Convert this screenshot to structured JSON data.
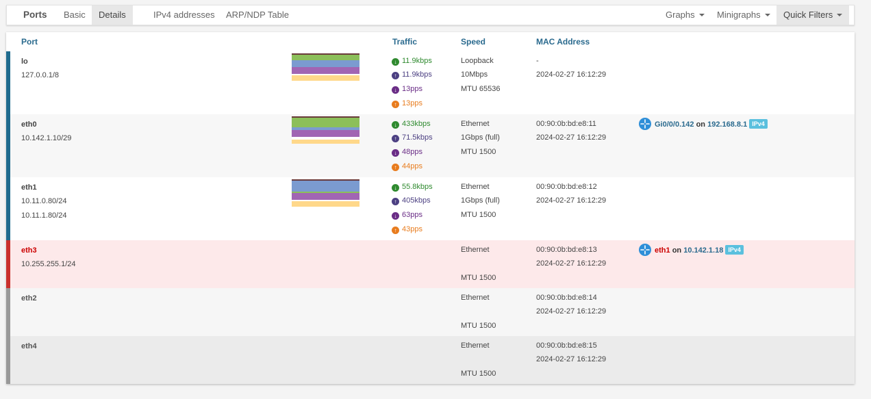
{
  "nav": {
    "title": "Ports",
    "basic": "Basic",
    "details": "Details",
    "ipv4": "IPv4 addresses",
    "arp": "ARP/NDP Table",
    "graphs": "Graphs",
    "minigraphs": "Minigraphs",
    "quick_filters": "Quick Filters"
  },
  "table": {
    "headers": {
      "port": "Port",
      "traffic": "Traffic",
      "speed": "Speed",
      "mac": "MAC Address"
    },
    "rows": [
      {
        "name": "lo",
        "status_color": "#2a6a8e",
        "addresses": [
          "127.0.0.1/8"
        ],
        "traffic": {
          "in_bps": "11.9kbps",
          "out_bps": "11.9kbps",
          "in_pps": "13pps",
          "out_pps": "13pps"
        },
        "speed": [
          "Loopback",
          "10Mbps",
          "MTU 65536"
        ],
        "mac": [
          "-",
          "2024-02-27 16:12:29"
        ]
      },
      {
        "name": "eth0",
        "status_color": "#2a6a8e",
        "addresses": [
          "10.142.1.10/29"
        ],
        "traffic": {
          "in_bps": "433kbps",
          "out_bps": "71.5kbps",
          "in_pps": "48pps",
          "out_pps": "44pps"
        },
        "speed": [
          "Ethernet",
          "1Gbps (full)",
          "MTU 1500"
        ],
        "mac": [
          "00:90:0b:bd:e8:11",
          "2024-02-27 16:12:29"
        ],
        "neighbour": {
          "port": "Gi0/0/0.142",
          "on": "on",
          "host": "192.168.8.1",
          "badge": "IPv4"
        }
      },
      {
        "name": "eth1",
        "status_color": "#2a6a8e",
        "addresses": [
          "10.11.0.80/24",
          "10.11.1.80/24"
        ],
        "traffic": {
          "in_bps": "55.8kbps",
          "out_bps": "405kbps",
          "in_pps": "63pps",
          "out_pps": "43pps"
        },
        "speed": [
          "Ethernet",
          "1Gbps (full)",
          "MTU 1500"
        ],
        "mac": [
          "00:90:0b:bd:e8:12",
          "2024-02-27 16:12:29"
        ]
      },
      {
        "name": "eth3",
        "status_color": "#c9302c",
        "addresses": [
          "10.255.255.1/24"
        ],
        "speed": [
          "Ethernet",
          "",
          "MTU 1500"
        ],
        "mac": [
          "00:90:0b:bd:e8:13",
          "2024-02-27 16:12:29"
        ],
        "neighbour": {
          "port": "eth1",
          "on": "on",
          "host": "10.142.1.18",
          "badge": "IPv4"
        }
      },
      {
        "name": "eth2",
        "status_color": "#999999",
        "addresses": [],
        "speed": [
          "Ethernet",
          "",
          "MTU 1500"
        ],
        "mac": [
          "00:90:0b:bd:e8:14",
          "2024-02-27 16:12:29"
        ]
      },
      {
        "name": "eth4",
        "status_color": "#999999",
        "addresses": [],
        "speed": [
          "Ethernet",
          "",
          "MTU 1500"
        ],
        "mac": [
          "00:90:0b:bd:e8:15",
          "2024-02-27 16:12:29"
        ]
      }
    ]
  },
  "icons": {
    "traffic_in": "arrow-down-circle-icon",
    "traffic_out": "arrow-up-circle-icon",
    "neighbour": "router-icon"
  },
  "colors": {
    "traffic_in": "#2f8a2f",
    "traffic_out": "#4c4082",
    "pps_in": "#6a2d86",
    "pps_out": "#e87c1e",
    "link": "#2a6a8e",
    "down": "#c9302c",
    "badge": "#5bc0de"
  }
}
